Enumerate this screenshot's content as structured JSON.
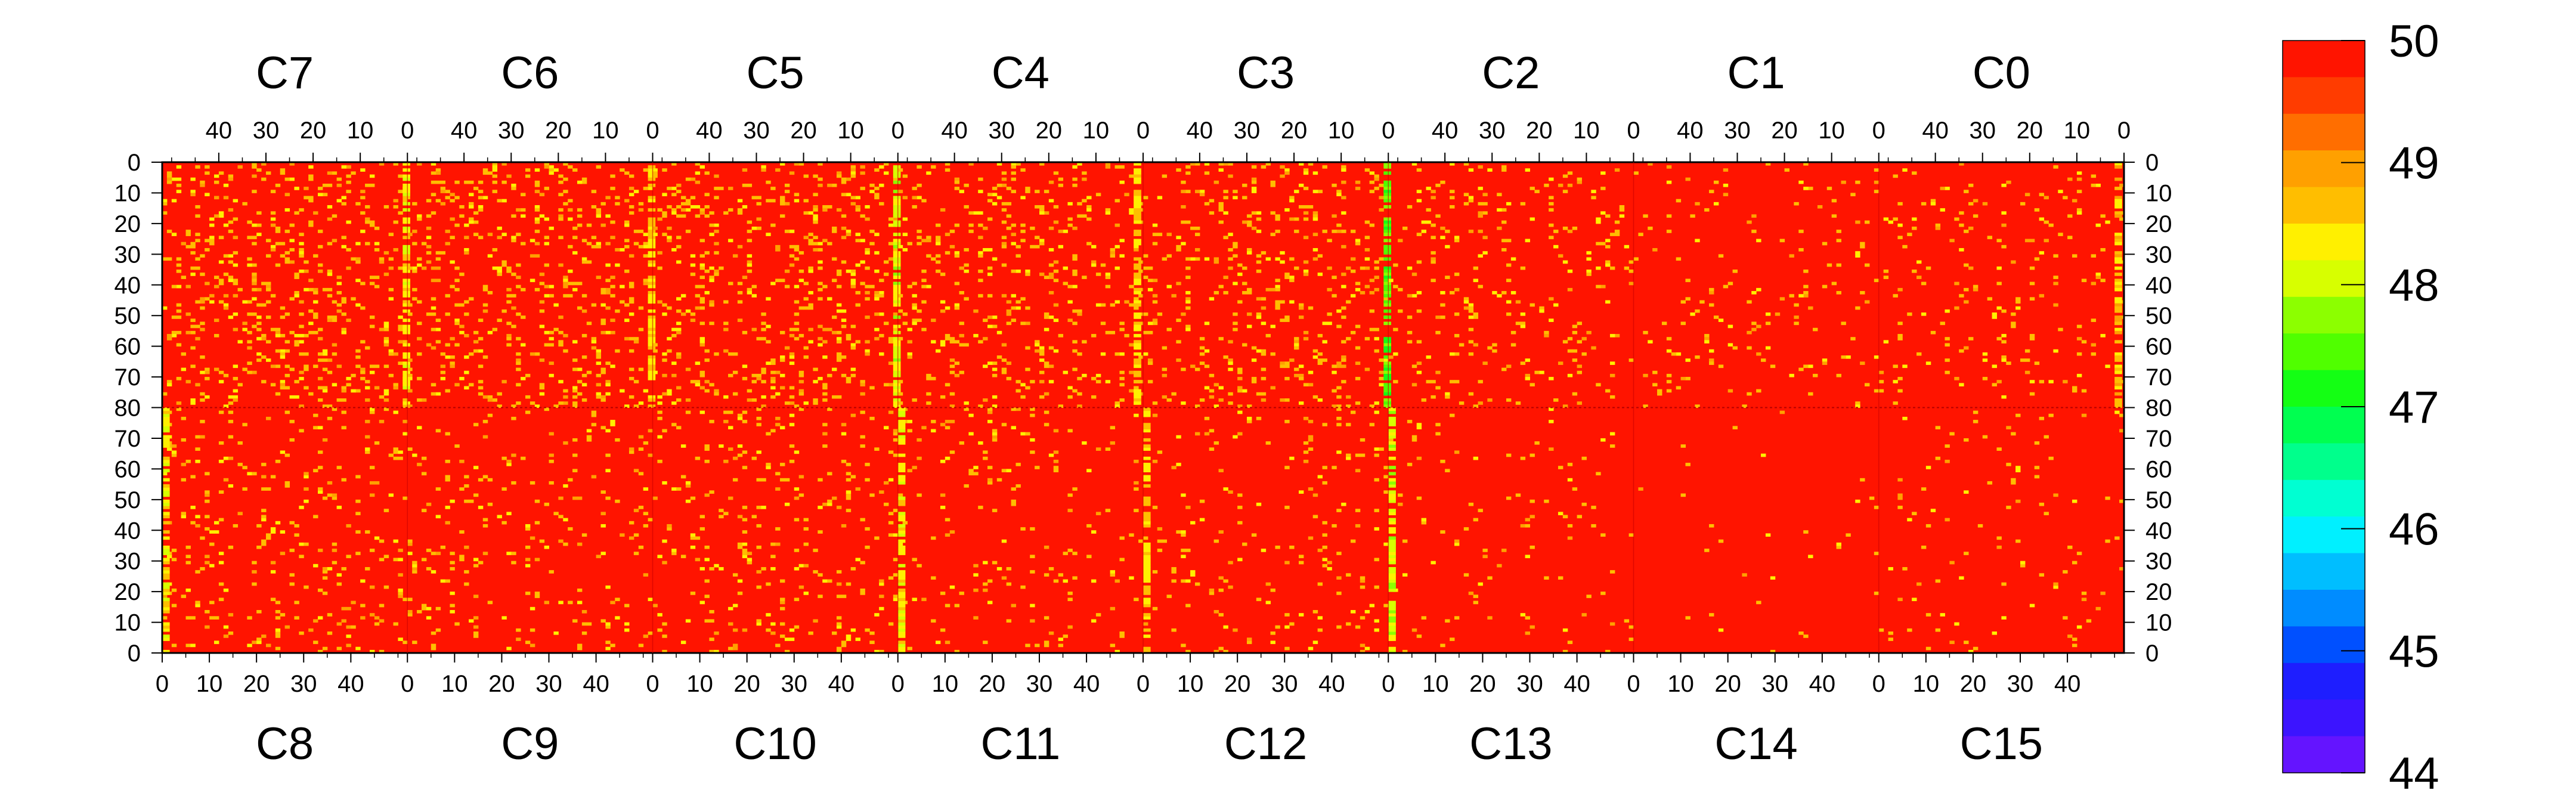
{
  "chart_data": {
    "type": "heatmap",
    "title": "",
    "value_range": [
      44,
      50
    ],
    "colorbar": {
      "min": 44,
      "max": 50,
      "labels": [
        "50",
        "49",
        "48",
        "47",
        "46",
        "45",
        "44"
      ],
      "levels": [
        50,
        49,
        48,
        47,
        46,
        45,
        44
      ],
      "colors": [
        "#ff1400",
        "#ff3c00",
        "#ff6e00",
        "#ffa000",
        "#ffbe00",
        "#fff000",
        "#d7ff00",
        "#8cff00",
        "#50ff00",
        "#14ff14",
        "#00ff50",
        "#00ff8c",
        "#00ffd2",
        "#00f0ff",
        "#00beff",
        "#008cff",
        "#0050ff",
        "#1e1eff",
        "#3c14ff",
        "#6414ff"
      ],
      "divisions": 20,
      "position": "right"
    },
    "base_color": "#ff1400",
    "top_row": {
      "chips": [
        "C7",
        "C6",
        "C5",
        "C4",
        "C3",
        "C2",
        "C1",
        "C0"
      ],
      "x_ticks": [
        "40",
        "30",
        "20",
        "10",
        "0"
      ],
      "x_tick_values": [
        40,
        30,
        20,
        10,
        0
      ],
      "x_reversed": true
    },
    "bottom_row": {
      "chips": [
        "C8",
        "C9",
        "C10",
        "C11",
        "C12",
        "C13",
        "C14",
        "C15"
      ],
      "x_ticks": [
        "0",
        "10",
        "20",
        "30",
        "40"
      ],
      "x_tick_values": [
        0,
        10,
        20,
        30,
        40
      ],
      "x_reversed": false
    },
    "columns_per_chip": 52,
    "rows_per_chip": 80,
    "y_ticks_top": [
      "0",
      "10",
      "20",
      "30",
      "40",
      "50",
      "60",
      "70",
      "80"
    ],
    "y_tick_values_top": [
      0,
      10,
      20,
      30,
      40,
      50,
      60,
      70,
      80
    ],
    "y_ticks_bottom": [
      "70",
      "60",
      "50",
      "40",
      "30",
      "20",
      "10",
      "0"
    ],
    "y_tick_values_bottom": [
      70,
      60,
      50,
      40,
      30,
      20,
      10,
      0
    ],
    "chip_noise_density": {
      "C7": 0.12,
      "C6": 0.12,
      "C5": 0.12,
      "C4": 0.1,
      "C3": 0.1,
      "C2": 0.06,
      "C1": 0.03,
      "C0": 0.05,
      "C8": 0.06,
      "C9": 0.05,
      "C10": 0.06,
      "C11": 0.04,
      "C12": 0.04,
      "C13": 0.02,
      "C14": 0.01,
      "C15": 0.02
    },
    "column_bands": [
      {
        "chip": "C7",
        "column": 0,
        "value": 48.6
      },
      {
        "chip": "C6",
        "column": 0,
        "value": 48.8
      },
      {
        "chip": "C5",
        "column": 0,
        "value": 48.4
      },
      {
        "chip": "C4",
        "column": 1,
        "value": 48.8
      },
      {
        "chip": "C3",
        "column": 0,
        "value": 47.8
      },
      {
        "chip": "C0",
        "column": 1,
        "value": 48.9
      },
      {
        "chip": "C8",
        "column": 0,
        "value": 48.7
      },
      {
        "chip": "C11",
        "column": 0,
        "value": 48.6
      },
      {
        "chip": "C12",
        "column": 0,
        "value": 48.8
      },
      {
        "chip": "C13",
        "column": 0,
        "value": 48.4
      }
    ],
    "grid": false
  }
}
